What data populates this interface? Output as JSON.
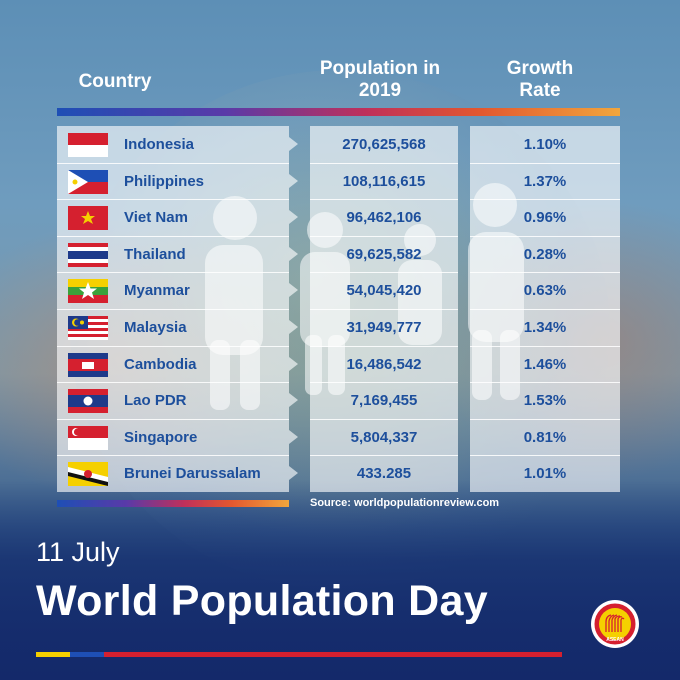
{
  "header": {
    "country_label": "Country",
    "population_label_line1": "Population in",
    "population_label_line2": "2019",
    "growth_label_line1": "Growth",
    "growth_label_line2": "Rate"
  },
  "rows": [
    {
      "country": "Indonesia",
      "population": "270,625,568",
      "growth": "1.10%"
    },
    {
      "country": "Philippines",
      "population": "108,116,615",
      "growth": "1.37%"
    },
    {
      "country": "Viet Nam",
      "population": "96,462,106",
      "growth": "0.96%"
    },
    {
      "country": "Thailand",
      "population": "69,625,582",
      "growth": "0.28%"
    },
    {
      "country": "Myanmar",
      "population": "54,045,420",
      "growth": "0.63%"
    },
    {
      "country": "Malaysia",
      "population": "31,949,777",
      "growth": "1.34%"
    },
    {
      "country": "Cambodia",
      "population": "16,486,542",
      "growth": "1.46%"
    },
    {
      "country": "Lao PDR",
      "population": "7,169,455",
      "growth": "1.53%"
    },
    {
      "country": "Singapore",
      "population": "5,804,337",
      "growth": "0.81%"
    },
    {
      "country": "Brunei Darussalam",
      "population": "433.285",
      "growth": "1.01%"
    }
  ],
  "source": "Source: worldpopulationreview.com",
  "date": "11 July",
  "title": "World Population Day",
  "logo_text": "ASEAN",
  "colors": {
    "table_text": "#1d4f9c",
    "accent_blue": "#1e4fb5",
    "accent_red": "#d5202f",
    "accent_yellow": "#f5d000"
  }
}
